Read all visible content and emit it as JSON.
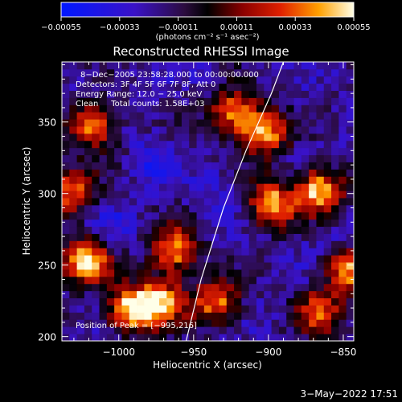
{
  "chart_data": {
    "type": "heatmap",
    "title": "Reconstructed RHESSI Image",
    "xlabel": "Heliocentric X (arcsec)",
    "ylabel": "Heliocentric Y (arcsec)",
    "xlim": [
      -1038,
      -843
    ],
    "ylim": [
      197,
      392
    ],
    "xticks": [
      -1000,
      -950,
      -900,
      -850
    ],
    "xtick_labels": [
      "−1000",
      "−950",
      "−900",
      "−850"
    ],
    "yticks": [
      200,
      250,
      300,
      350
    ],
    "ytick_labels": [
      "200",
      "250",
      "300",
      "350"
    ],
    "colorbar": {
      "range": [
        -0.00055,
        0.00055
      ],
      "ticks": [
        -0.00055,
        -0.00033,
        -0.00011,
        0.00011,
        0.00033,
        0.00055
      ],
      "tick_labels": [
        "−0.00055",
        "−0.00033",
        "−0.00011",
        "0.00011",
        "0.00033",
        "0.00055"
      ],
      "unit_label": "(photons cm⁻² s⁻¹ asec⁻²)"
    },
    "annotations": {
      "time_line": "8−Dec−2005 23:58:28.000 to 00:00:00.000",
      "detectors_line": "Detectors: 3F 4F 5F 6F 7F 8F, Att 0",
      "energy_line": "Energy Range: 12.0 − 25.0 keV",
      "clean_line": "Clean     Total counts: 1.58E+03",
      "peak_line": "Position of Peak = [−995,216]"
    },
    "limb_curve": [
      [
        -955,
        197
      ],
      [
        -945,
        240
      ],
      [
        -930,
        290
      ],
      [
        -915,
        330
      ],
      [
        -898,
        370
      ],
      [
        -890,
        392
      ]
    ],
    "peak_position": [
      -995,
      216
    ],
    "bright_regions": [
      {
        "x": -1025,
        "y": 250,
        "value": 0.00055
      },
      {
        "x": -975,
        "y": 223,
        "value": 0.00048
      },
      {
        "x": -965,
        "y": 258,
        "value": 0.00045
      },
      {
        "x": -995,
        "y": 216,
        "value": 0.00055
      },
      {
        "x": -900,
        "y": 290,
        "value": 0.0005
      },
      {
        "x": -868,
        "y": 300,
        "value": 0.00052
      },
      {
        "x": -905,
        "y": 340,
        "value": 0.00045
      },
      {
        "x": -925,
        "y": 355,
        "value": 0.00042
      },
      {
        "x": -1020,
        "y": 345,
        "value": 0.0004
      },
      {
        "x": -850,
        "y": 245,
        "value": 0.00045
      },
      {
        "x": -938,
        "y": 222,
        "value": 0.0004
      },
      {
        "x": -1035,
        "y": 300,
        "value": 0.00038
      },
      {
        "x": -870,
        "y": 215,
        "value": 0.00038
      }
    ],
    "dim_regions": [
      {
        "x": -980,
        "y": 320,
        "value": -0.00035
      },
      {
        "x": -935,
        "y": 300,
        "value": -0.0003
      },
      {
        "x": -1005,
        "y": 275,
        "value": -0.00028
      },
      {
        "x": -860,
        "y": 265,
        "value": -0.0003
      },
      {
        "x": -880,
        "y": 215,
        "value": -0.00025
      }
    ]
  },
  "footer": {
    "date": "3−May−2022 17:51"
  }
}
